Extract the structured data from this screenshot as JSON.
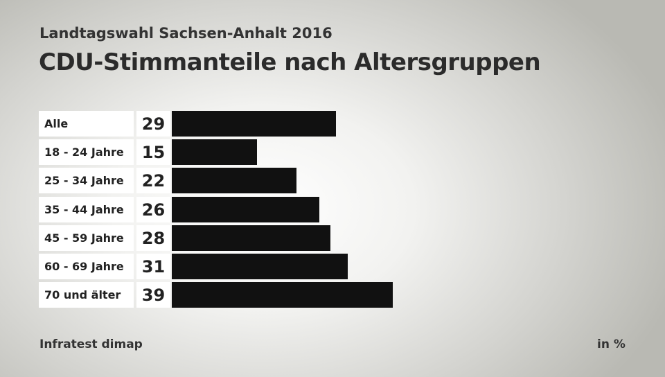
{
  "header": {
    "subtitle": "Landtagswahl Sachsen-Anhalt 2016",
    "title": "CDU-Stimmanteile nach Altersgruppen"
  },
  "footer": {
    "source": "Infratest dimap",
    "unit": "in %"
  },
  "colors": {
    "bar": "#111111",
    "label_bg": "#ffffff"
  },
  "chart_data": {
    "type": "bar",
    "orientation": "horizontal",
    "title": "CDU-Stimmanteile nach Altersgruppen",
    "categories": [
      "Alle",
      "18 - 24 Jahre",
      "25 - 34 Jahre",
      "35 - 44 Jahre",
      "45 - 59 Jahre",
      "60 - 69 Jahre",
      "70 und älter"
    ],
    "values": [
      29,
      15,
      22,
      26,
      28,
      31,
      39
    ],
    "value_labels": [
      "29",
      "15",
      "22",
      "26",
      "28",
      "31",
      "39"
    ],
    "xlim": [
      0,
      100
    ],
    "grid": false,
    "legend": "none"
  }
}
